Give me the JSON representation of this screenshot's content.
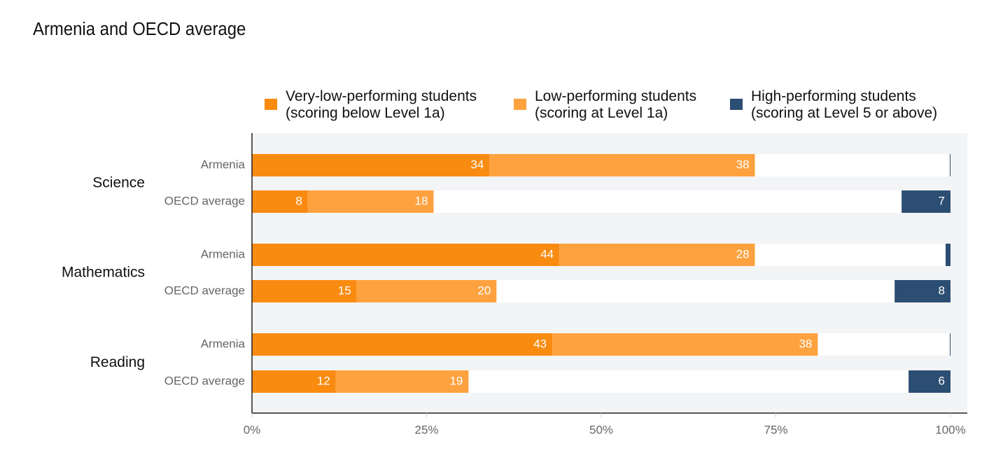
{
  "chart_data": {
    "type": "bar",
    "orientation": "horizontal",
    "stacked": true,
    "title": "Armenia and OECD average",
    "groups": [
      "Science",
      "Mathematics",
      "Reading"
    ],
    "categories": [
      "Armenia",
      "OECD average",
      "Armenia",
      "OECD average",
      "Armenia",
      "OECD average"
    ],
    "series": [
      {
        "name": "Very-low-performing students\n(scoring below Level 1a)",
        "color": "#f98b11",
        "anchor": "left",
        "values": [
          34,
          8,
          44,
          15,
          43,
          12
        ]
      },
      {
        "name": "Low-performing students\n(scoring at Level 1a)",
        "color": "#fda23f",
        "anchor": "left",
        "values": [
          38,
          18,
          28,
          20,
          38,
          19
        ]
      },
      {
        "name": "High-performing students\n(scoring at Level 5 or above)",
        "color": "#2b4e72",
        "anchor": "right",
        "values": [
          0.1,
          7,
          0.7,
          8,
          0.1,
          6
        ],
        "value_labels": [
          null,
          "7",
          null,
          "8",
          null,
          "6"
        ]
      }
    ],
    "xlim": [
      0,
      100
    ],
    "xticks": [
      {
        "value": 0,
        "label": "0%"
      },
      {
        "value": 25,
        "label": "25%"
      },
      {
        "value": 50,
        "label": "50%"
      },
      {
        "value": 75,
        "label": "75%"
      },
      {
        "value": 100,
        "label": "100%"
      }
    ],
    "legend": "top"
  }
}
